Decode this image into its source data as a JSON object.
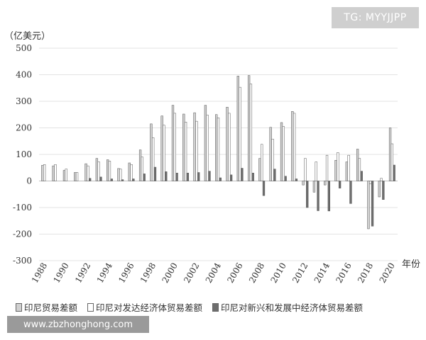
{
  "watermark": {
    "tg": "TG: MYYJJPP",
    "url": "www.zbzhonghong.com"
  },
  "chart_data": {
    "type": "bar",
    "ylabel": "（亿美元）",
    "xlabel": "年份",
    "ylim": [
      -300,
      500
    ],
    "yticks": [
      500,
      400,
      300,
      200,
      100,
      0,
      -100,
      -200,
      -300
    ],
    "grid": true,
    "legend_position": "bottom",
    "categories": [
      "1988",
      "1989",
      "1990",
      "1991",
      "1992",
      "1993",
      "1994",
      "1995",
      "1996",
      "1997",
      "1998",
      "1999",
      "2000",
      "2001",
      "2002",
      "2003",
      "2004",
      "2005",
      "2006",
      "2007",
      "2008",
      "2009",
      "2010",
      "2011",
      "2012",
      "2013",
      "2014",
      "2015",
      "2016",
      "2017",
      "2018",
      "2019",
      "2020"
    ],
    "x_tick_labels": [
      "1988",
      "1990",
      "1992",
      "1994",
      "1996",
      "1998",
      "2000",
      "2002",
      "2004",
      "2006",
      "2008",
      "2010",
      "2012",
      "2014",
      "2016",
      "2018",
      "2020"
    ],
    "series": [
      {
        "name": "印尼贸易差额",
        "color": "#d0d0d0",
        "values": [
          59,
          57,
          40,
          32,
          65,
          85,
          80,
          47,
          68,
          117,
          215,
          245,
          285,
          252,
          257,
          285,
          250,
          278,
          395,
          397,
          85,
          202,
          220,
          262,
          -15,
          -42,
          -15,
          78,
          72,
          120,
          -180,
          -60,
          200
        ]
      },
      {
        "name": "印尼对发达经济体贸易差额",
        "color": "#ffffff",
        "values": [
          62,
          62,
          45,
          32,
          57,
          72,
          75,
          45,
          62,
          90,
          163,
          210,
          255,
          222,
          225,
          248,
          238,
          255,
          353,
          365,
          138,
          158,
          205,
          255,
          85,
          72,
          97,
          107,
          97,
          85,
          -10,
          10,
          140
        ]
      },
      {
        "name": "印尼对新兴和发展中经济体贸易差额",
        "color": "#6e6e6e",
        "values": [
          0,
          0,
          0,
          0,
          10,
          15,
          8,
          5,
          8,
          27,
          52,
          35,
          30,
          30,
          32,
          37,
          12,
          23,
          48,
          30,
          -55,
          45,
          18,
          8,
          -100,
          -112,
          -113,
          -27,
          -85,
          37,
          -170,
          -70,
          60
        ]
      }
    ]
  }
}
